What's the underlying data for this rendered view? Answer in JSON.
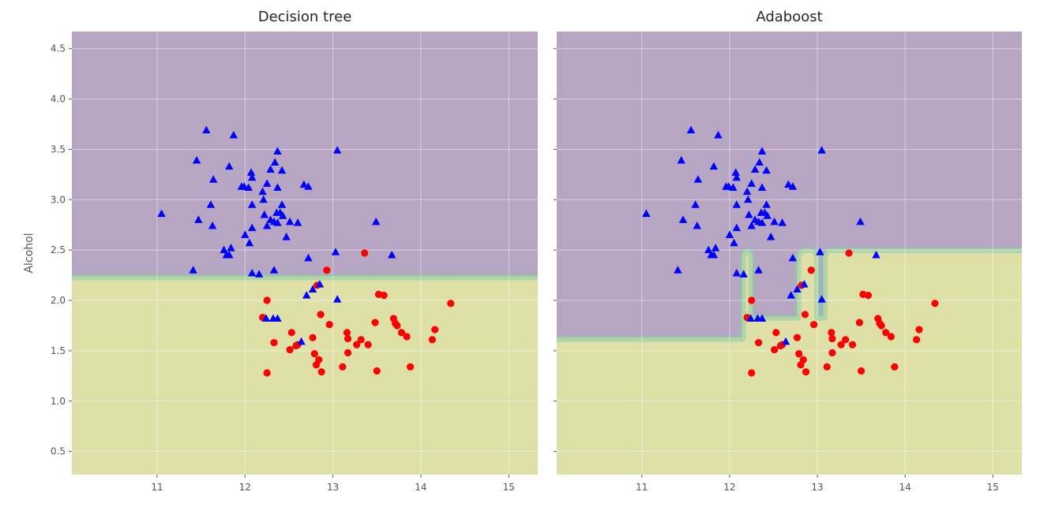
{
  "colors": {
    "class0_region": "#b6a6c3",
    "class1_region": "#dfe0a8",
    "boundary": "#8fc7ae",
    "boundary_inner": "#a9db9c",
    "class0_marker": "#0000ff",
    "class1_marker": "#ff0000"
  },
  "chart_data": [
    {
      "type": "scatter",
      "title": "Decision tree",
      "xlabel": "",
      "ylabel": "Alcohol",
      "xlim": [
        10.03,
        15.33
      ],
      "ylim": [
        0.27,
        4.67
      ],
      "xticks": [
        11,
        12,
        13,
        14,
        15
      ],
      "yticks": [
        0.5,
        1.0,
        1.5,
        2.0,
        2.5,
        3.0,
        3.5,
        4.0,
        4.5
      ],
      "ytick_labels": [
        "0.5",
        "1.0",
        "1.5",
        "2.0",
        "2.5",
        "3.0",
        "3.5",
        "4.0",
        "4.5"
      ],
      "show_yticklabels": true,
      "grid": true,
      "decision_boundary": [
        [
          10.03,
          2.23
        ],
        [
          15.33,
          2.23
        ]
      ]
    },
    {
      "type": "scatter",
      "title": "Adaboost",
      "xlabel": "",
      "ylabel": "",
      "xlim": [
        10.03,
        15.33
      ],
      "ylim": [
        0.27,
        4.67
      ],
      "xticks": [
        11,
        12,
        13,
        14,
        15
      ],
      "yticks": [
        0.5,
        1.0,
        1.5,
        2.0,
        2.5,
        3.0,
        3.5,
        4.0,
        4.5
      ],
      "ytick_labels": [
        "0.5",
        "1.0",
        "1.5",
        "2.0",
        "2.5",
        "3.0",
        "3.5",
        "4.0",
        "4.5"
      ],
      "show_yticklabels": false,
      "grid": true,
      "decision_boundary": [
        [
          10.03,
          1.62
        ],
        [
          12.15,
          1.62
        ],
        [
          12.15,
          2.45
        ],
        [
          12.2,
          2.5
        ],
        [
          12.25,
          2.45
        ],
        [
          12.25,
          1.83
        ],
        [
          12.78,
          1.83
        ],
        [
          12.78,
          2.45
        ],
        [
          12.83,
          2.5
        ],
        [
          12.95,
          2.5
        ],
        [
          13.0,
          2.45
        ],
        [
          13.0,
          1.83
        ],
        [
          13.08,
          1.83
        ],
        [
          13.08,
          2.45
        ],
        [
          13.13,
          2.5
        ],
        [
          15.33,
          2.5
        ]
      ]
    }
  ],
  "shared_series": [
    {
      "name": "class 0",
      "marker": "triangle",
      "points": [
        [
          11.05,
          2.86
        ],
        [
          11.41,
          2.3
        ],
        [
          11.45,
          3.39
        ],
        [
          11.47,
          2.8
        ],
        [
          11.56,
          3.69
        ],
        [
          11.61,
          2.95
        ],
        [
          11.63,
          2.74
        ],
        [
          11.64,
          3.2
        ],
        [
          11.76,
          2.5
        ],
        [
          11.79,
          2.45
        ],
        [
          11.82,
          3.33
        ],
        [
          11.82,
          2.45
        ],
        [
          11.84,
          2.52
        ],
        [
          11.87,
          3.64
        ],
        [
          11.96,
          3.13
        ],
        [
          11.99,
          3.13
        ],
        [
          12.0,
          2.65
        ],
        [
          12.04,
          3.12
        ],
        [
          12.05,
          2.57
        ],
        [
          12.07,
          3.27
        ],
        [
          12.08,
          3.22
        ],
        [
          12.08,
          2.72
        ],
        [
          12.08,
          2.95
        ],
        [
          12.08,
          2.27
        ],
        [
          12.16,
          2.26
        ],
        [
          12.2,
          3.08
        ],
        [
          12.21,
          3.0
        ],
        [
          12.22,
          2.85
        ],
        [
          12.25,
          3.16
        ],
        [
          12.25,
          2.74
        ],
        [
          12.29,
          3.3
        ],
        [
          12.29,
          2.8
        ],
        [
          12.33,
          2.78
        ],
        [
          12.33,
          2.3
        ],
        [
          12.34,
          3.37
        ],
        [
          12.36,
          2.87
        ],
        [
          12.37,
          3.48
        ],
        [
          12.37,
          3.12
        ],
        [
          12.37,
          2.77
        ],
        [
          12.4,
          2.87
        ],
        [
          12.42,
          3.29
        ],
        [
          12.42,
          2.95
        ],
        [
          12.43,
          2.84
        ],
        [
          12.47,
          2.63
        ],
        [
          12.51,
          2.78
        ],
        [
          12.6,
          2.77
        ],
        [
          12.64,
          1.59
        ],
        [
          12.67,
          3.15
        ],
        [
          12.7,
          2.05
        ],
        [
          12.72,
          3.13
        ],
        [
          12.72,
          2.42
        ],
        [
          12.77,
          2.11
        ],
        [
          12.85,
          2.16
        ],
        [
          13.03,
          2.48
        ],
        [
          13.05,
          3.49
        ],
        [
          13.05,
          2.01
        ],
        [
          13.49,
          2.78
        ],
        [
          13.67,
          2.45
        ],
        [
          12.24,
          1.82
        ],
        [
          12.32,
          1.82
        ],
        [
          12.37,
          1.82
        ]
      ]
    },
    {
      "name": "class 1",
      "marker": "circle",
      "points": [
        [
          12.2,
          1.83
        ],
        [
          12.25,
          1.28
        ],
        [
          12.25,
          2.0
        ],
        [
          12.33,
          1.58
        ],
        [
          12.51,
          1.51
        ],
        [
          12.53,
          1.68
        ],
        [
          12.58,
          1.55
        ],
        [
          12.6,
          1.56
        ],
        [
          12.77,
          1.63
        ],
        [
          12.79,
          1.47
        ],
        [
          12.81,
          1.36
        ],
        [
          12.82,
          2.15
        ],
        [
          12.84,
          1.41
        ],
        [
          12.86,
          1.86
        ],
        [
          12.87,
          1.29
        ],
        [
          12.93,
          2.3
        ],
        [
          12.96,
          1.76
        ],
        [
          13.11,
          1.34
        ],
        [
          13.16,
          1.68
        ],
        [
          13.17,
          1.62
        ],
        [
          13.17,
          1.48
        ],
        [
          13.27,
          1.56
        ],
        [
          13.32,
          1.61
        ],
        [
          13.36,
          2.47
        ],
        [
          13.4,
          1.56
        ],
        [
          13.48,
          1.78
        ],
        [
          13.5,
          1.3
        ],
        [
          13.52,
          2.06
        ],
        [
          13.58,
          2.05
        ],
        [
          13.69,
          1.82
        ],
        [
          13.71,
          1.77
        ],
        [
          13.73,
          1.75
        ],
        [
          13.78,
          1.68
        ],
        [
          13.84,
          1.64
        ],
        [
          13.88,
          1.34
        ],
        [
          14.13,
          1.61
        ],
        [
          14.16,
          1.71
        ],
        [
          14.34,
          1.97
        ]
      ]
    }
  ]
}
